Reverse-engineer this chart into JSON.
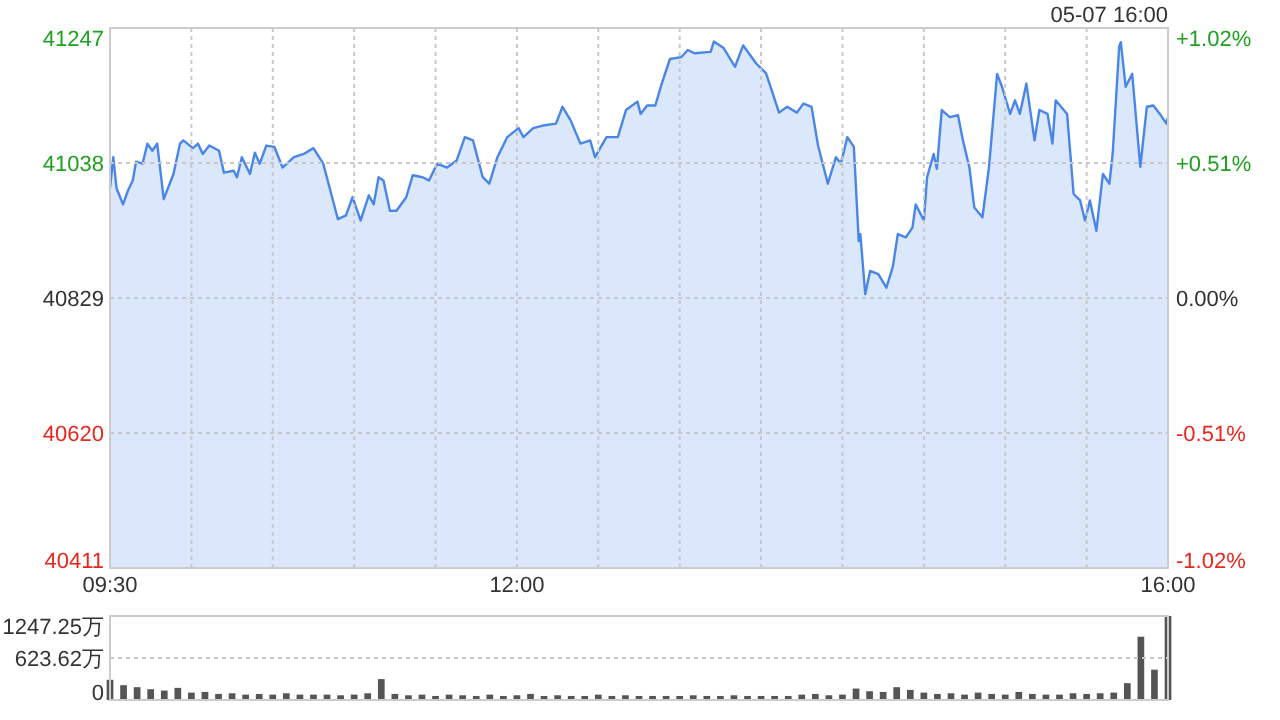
{
  "chart_data": [
    {
      "type": "area",
      "color": "#4a86e8",
      "grid": true,
      "annotations": [
        "05-07 16:00"
      ],
      "xlim": [
        9.5,
        16
      ],
      "xticks": [
        {
          "value": 9.5,
          "label": "09:30"
        },
        {
          "value": 10,
          "label": null
        },
        {
          "value": 10.5,
          "label": null
        },
        {
          "value": 11,
          "label": null
        },
        {
          "value": 11.5,
          "label": null
        },
        {
          "value": 12,
          "label": "12:00"
        },
        {
          "value": 12.5,
          "label": null
        },
        {
          "value": 13,
          "label": null
        },
        {
          "value": 13.5,
          "label": null
        },
        {
          "value": 14,
          "label": null
        },
        {
          "value": 14.5,
          "label": null
        },
        {
          "value": 15,
          "label": null
        },
        {
          "value": 15.5,
          "label": null
        },
        {
          "value": 16,
          "label": "16:00"
        }
      ],
      "ylim": [
        40411,
        41247
      ],
      "yticks": [
        40411,
        40620,
        40829,
        41038,
        41247
      ],
      "y2lim": [
        -1.02,
        1.02
      ],
      "y2ticks": [
        {
          "value": -1.02,
          "label": "-1.02%"
        },
        {
          "value": -0.51,
          "label": "-0.51%"
        },
        {
          "value": 0,
          "label": "0.00%"
        },
        {
          "value": 0.51,
          "label": "+0.51%"
        },
        {
          "value": 1.02,
          "label": "+1.02%"
        }
      ],
      "x": [
        9.5,
        9.52,
        9.54,
        9.58,
        9.61,
        9.64,
        9.66,
        9.7,
        9.73,
        9.76,
        9.79,
        9.83,
        9.89,
        9.93,
        9.95,
        10.01,
        10.04,
        10.07,
        10.11,
        10.17,
        10.2,
        10.26,
        10.28,
        10.31,
        10.36,
        10.39,
        10.42,
        10.46,
        10.51,
        10.56,
        10.63,
        10.69,
        10.75,
        10.81,
        10.85,
        10.9,
        10.95,
        10.99,
        11.04,
        11.09,
        11.12,
        11.15,
        11.18,
        11.22,
        11.26,
        11.32,
        11.36,
        11.42,
        11.46,
        11.51,
        11.57,
        11.63,
        11.68,
        11.73,
        11.79,
        11.83,
        11.88,
        11.94,
        12.01,
        12.04,
        12.1,
        12.16,
        12.24,
        12.28,
        12.33,
        12.39,
        12.45,
        12.48,
        12.55,
        12.62,
        12.67,
        12.74,
        12.76,
        12.8,
        12.85,
        12.89,
        12.94,
        13.01,
        13.05,
        13.09,
        13.19,
        13.21,
        13.27,
        13.34,
        13.39,
        13.47,
        13.53,
        13.57,
        13.61,
        13.66,
        13.72,
        13.76,
        13.81,
        13.85,
        13.91,
        13.96,
        13.99,
        14.03,
        14.07,
        14.1,
        14.11,
        14.14,
        14.17,
        14.22,
        14.27,
        14.31,
        14.34,
        14.39,
        14.43,
        14.45,
        14.5,
        14.52,
        14.56,
        14.58,
        14.61,
        14.66,
        14.71,
        14.74,
        14.78,
        14.81,
        14.86,
        14.9,
        14.95,
        14.98,
        15.03,
        15.06,
        15.09,
        15.13,
        15.18,
        15.21,
        15.26,
        15.29,
        15.31,
        15.38,
        15.42,
        15.46,
        15.49,
        15.52,
        15.56,
        15.6,
        15.64,
        15.66,
        15.7,
        15.71,
        15.74,
        15.78,
        15.83,
        15.87,
        15.91,
        15.95,
        15.99,
        16
      ],
      "values": [
        40999,
        41047,
        40999,
        40974,
        40995,
        41011,
        41040,
        41037,
        41068,
        41057,
        41068,
        40982,
        41021,
        41068,
        41073,
        41061,
        41068,
        41052,
        41065,
        41057,
        41023,
        41026,
        41016,
        41047,
        41021,
        41054,
        41037,
        41065,
        41063,
        41031,
        41047,
        41052,
        41061,
        41037,
        40999,
        40951,
        40957,
        40985,
        40949,
        40988,
        40974,
        41016,
        41011,
        40964,
        40964,
        40985,
        41019,
        41016,
        41011,
        41037,
        41031,
        41042,
        41078,
        41073,
        41016,
        41006,
        41047,
        41078,
        41092,
        41078,
        41092,
        41096,
        41099,
        41125,
        41104,
        41068,
        41073,
        41047,
        41078,
        41078,
        41120,
        41133,
        41114,
        41127,
        41127,
        41161,
        41199,
        41202,
        41213,
        41208,
        41210,
        41226,
        41216,
        41187,
        41220,
        41192,
        41177,
        41147,
        41116,
        41125,
        41116,
        41130,
        41125,
        41065,
        41006,
        41047,
        41037,
        41078,
        41063,
        40917,
        40928,
        40835,
        40871,
        40866,
        40845,
        40878,
        40928,
        40923,
        40938,
        40974,
        40949,
        41016,
        41052,
        41029,
        41120,
        41109,
        41112,
        41073,
        41031,
        40969,
        40954,
        41031,
        41176,
        41156,
        41114,
        41135,
        41114,
        41161,
        41073,
        41120,
        41114,
        41068,
        41135,
        41114,
        40990,
        40980,
        40949,
        40980,
        40933,
        41021,
        41006,
        41052,
        41218,
        41225,
        41156,
        41176,
        41032,
        41125,
        41127,
        41114,
        41099,
        41109
      ]
    },
    {
      "type": "bar",
      "color": "#555555",
      "grid": "y",
      "tick_labels": "y",
      "xlim": [
        9.5,
        16
      ],
      "ylim": [
        0,
        1247.25
      ],
      "yticks": [
        0,
        {
          "value": 623.62,
          "label": "623.62万"
        },
        {
          "value": 1247.25,
          "label": "1247.25万"
        }
      ],
      "x": [
        9.5,
        9.5833,
        9.6667,
        9.75,
        9.8333,
        9.9167,
        10,
        10.0833,
        10.1667,
        10.25,
        10.3333,
        10.4167,
        10.5,
        10.5833,
        10.6667,
        10.75,
        10.8333,
        10.9167,
        11,
        11.0833,
        11.1667,
        11.25,
        11.3333,
        11.4167,
        11.5,
        11.5833,
        11.6667,
        11.75,
        11.8333,
        11.9167,
        12,
        12.0833,
        12.1667,
        12.25,
        12.3333,
        12.4167,
        12.5,
        12.5833,
        12.6667,
        12.75,
        12.8333,
        12.9167,
        13,
        13.0833,
        13.1667,
        13.25,
        13.3333,
        13.4167,
        13.5,
        13.5833,
        13.6667,
        13.75,
        13.8333,
        13.9167,
        14,
        14.0833,
        14.1667,
        14.25,
        14.3333,
        14.4167,
        14.5,
        14.5833,
        14.6667,
        14.75,
        14.8333,
        14.9167,
        15,
        15.0833,
        15.1667,
        15.25,
        15.3333,
        15.4167,
        15.5,
        15.5833,
        15.6667,
        15.75,
        15.8333,
        15.9167,
        16
      ],
      "values": [
        300,
        220,
        190,
        160,
        140,
        180,
        110,
        120,
        90,
        100,
        80,
        90,
        80,
        100,
        80,
        80,
        80,
        70,
        80,
        100,
        310,
        90,
        70,
        80,
        60,
        80,
        70,
        60,
        80,
        60,
        70,
        90,
        60,
        70,
        60,
        60,
        80,
        60,
        70,
        60,
        60,
        60,
        60,
        70,
        60,
        60,
        70,
        60,
        60,
        60,
        60,
        80,
        90,
        70,
        80,
        170,
        130,
        120,
        190,
        150,
        110,
        90,
        100,
        80,
        110,
        90,
        80,
        120,
        90,
        80,
        80,
        100,
        90,
        100,
        110,
        250,
        940,
        450,
        1247.25
      ]
    }
  ]
}
